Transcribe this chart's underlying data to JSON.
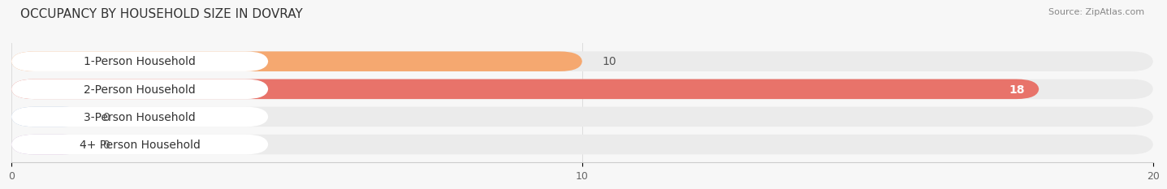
{
  "title": "OCCUPANCY BY HOUSEHOLD SIZE IN DOVRAY",
  "source": "Source: ZipAtlas.com",
  "categories": [
    "1-Person Household",
    "2-Person Household",
    "3-Person Household",
    "4+ Person Household"
  ],
  "values": [
    10,
    18,
    0,
    0
  ],
  "bar_colors": [
    "#f5a870",
    "#e8736a",
    "#a8bfe0",
    "#c9a8d4"
  ],
  "bg_track_color": "#ebebeb",
  "label_bg_color": "#ffffff",
  "background_color": "#f7f7f7",
  "xlim": [
    0,
    20
  ],
  "xticks": [
    0,
    10,
    20
  ],
  "label_fontsize": 10,
  "title_fontsize": 11,
  "source_fontsize": 8,
  "bar_height": 0.72,
  "rounding_size": 0.4
}
